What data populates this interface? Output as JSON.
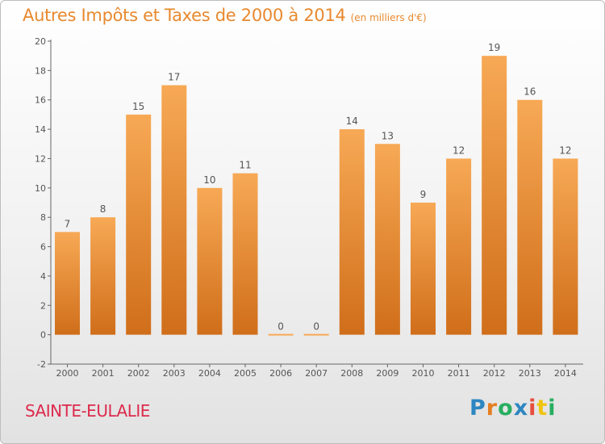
{
  "title": "Autres Impôts et Taxes de 2000 à 2014",
  "title_unit": "(en milliers d'€)",
  "commune": "SAINTE-EULALIE",
  "logo": {
    "text": "Proxiti",
    "letters": [
      {
        "char": "P",
        "color": "#2e86c1"
      },
      {
        "char": "r",
        "color": "#e67e22"
      },
      {
        "char": "o",
        "color": "#27ae60"
      },
      {
        "char": "x",
        "color": "#2e86c1"
      },
      {
        "char": "i",
        "color": "#e74c3c"
      },
      {
        "char": "t",
        "color": "#f1c40f"
      },
      {
        "char": "i",
        "color": "#27ae60"
      }
    ]
  },
  "chart_data": {
    "type": "bar",
    "categories": [
      "2000",
      "2001",
      "2002",
      "2003",
      "2004",
      "2005",
      "2006",
      "2007",
      "2008",
      "2009",
      "2010",
      "2011",
      "2012",
      "2013",
      "2014"
    ],
    "values": [
      7,
      8,
      15,
      17,
      10,
      11,
      0,
      0,
      14,
      13,
      9,
      12,
      19,
      16,
      12
    ],
    "data_labels": [
      "7",
      "8",
      "15",
      "17",
      "10",
      "11",
      "0",
      "0",
      "14",
      "13",
      "9",
      "12",
      "19",
      "16",
      "12"
    ],
    "ylim": [
      -2,
      20
    ],
    "yticks": [
      -2,
      0,
      2,
      4,
      6,
      8,
      10,
      12,
      14,
      16,
      18,
      20
    ],
    "grid": false,
    "colors": {
      "bar_top": "#f7a955",
      "bar_bottom": "#d06e1a",
      "axis": "#666666",
      "label": "#555555"
    }
  }
}
